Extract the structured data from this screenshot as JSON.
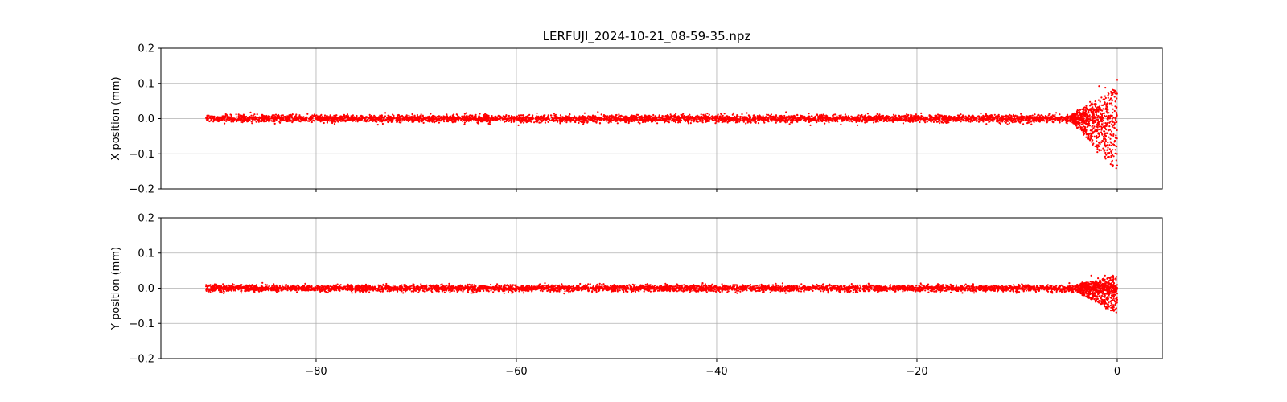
{
  "figure": {
    "title": "LERFUJI_2024-10-21_08-59-35.npz"
  },
  "chart_data": [
    {
      "type": "scatter",
      "ylabel": "X position (mm)",
      "xlabel": "",
      "xlim": [
        -95.5,
        4.5
      ],
      "ylim": [
        -0.2,
        0.2
      ],
      "xticks": [
        -80,
        -60,
        -40,
        -20,
        0
      ],
      "yticks": [
        -0.2,
        -0.1,
        0.0,
        0.1,
        0.2
      ],
      "ytick_labels": [
        "−0.2",
        "−0.1",
        "0.0",
        "0.1",
        "0.2"
      ],
      "xtick_labels": [],
      "grid": true,
      "color": "#ff0000",
      "series": [
        {
          "x_range": [
            -91,
            0
          ],
          "baseline": 0.0,
          "noise_amplitude": 0.012,
          "burst_start": -4.5,
          "burst_peak_max": 0.092,
          "burst_peak_min": -0.15,
          "outlier": [
            0.0,
            0.11
          ]
        }
      ]
    },
    {
      "type": "scatter",
      "ylabel": "Y position (mm)",
      "xlabel": "",
      "xlim": [
        -95.5,
        4.5
      ],
      "ylim": [
        -0.2,
        0.2
      ],
      "xticks": [
        -80,
        -60,
        -40,
        -20,
        0
      ],
      "yticks": [
        -0.2,
        -0.1,
        0.0,
        0.1,
        0.2
      ],
      "ytick_labels": [
        "−0.2",
        "−0.1",
        "0.0",
        "0.1",
        "0.2"
      ],
      "xtick_labels": [
        "−80",
        "−60",
        "−40",
        "−20",
        "0"
      ],
      "grid": true,
      "color": "#ff0000",
      "series": [
        {
          "x_range": [
            -91,
            0
          ],
          "baseline": 0.0,
          "noise_amplitude": 0.011,
          "burst_start": -4.0,
          "burst_peak_max": 0.036,
          "burst_peak_min": -0.073
        }
      ]
    }
  ]
}
